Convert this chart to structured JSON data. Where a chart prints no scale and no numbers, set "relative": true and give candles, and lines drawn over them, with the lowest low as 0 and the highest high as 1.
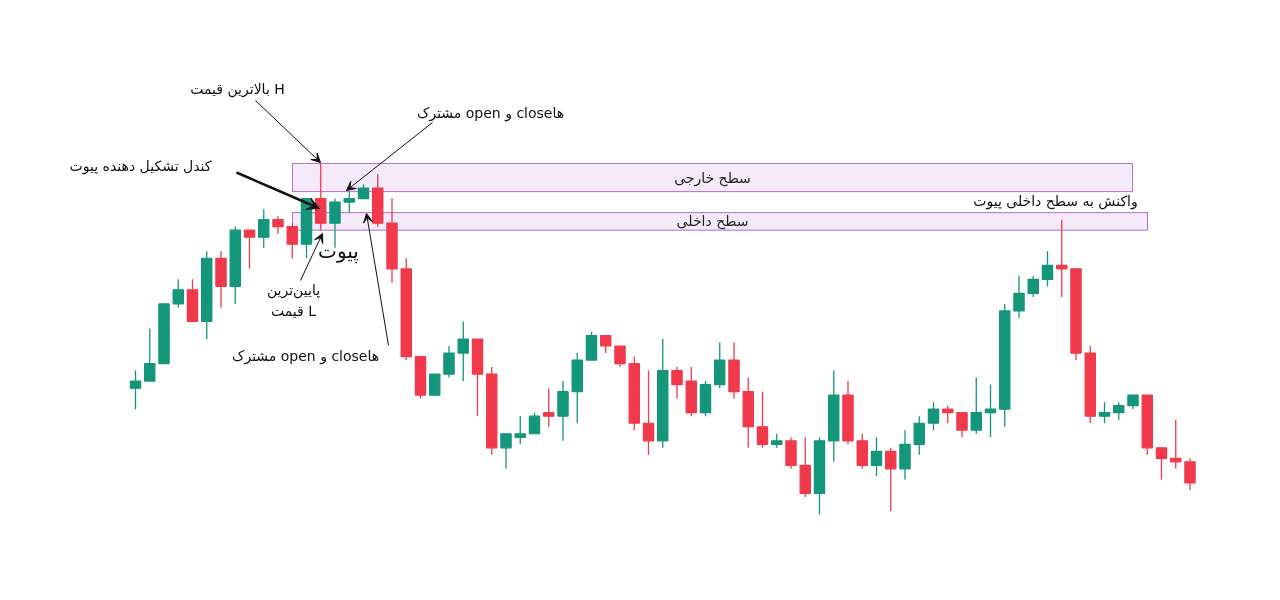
{
  "chart_data": {
    "type": "candlestick",
    "relative": true,
    "categories": [
      null,
      null,
      null,
      null,
      null,
      null,
      null,
      null,
      null,
      null,
      null,
      null,
      null,
      null,
      null,
      null,
      null,
      null,
      null,
      null,
      null,
      null,
      null,
      null,
      null,
      null,
      null,
      null,
      null,
      null,
      null,
      null,
      null,
      null,
      null,
      null,
      null,
      null,
      null,
      null,
      null,
      null,
      null,
      null,
      null,
      null,
      null,
      null,
      null,
      null,
      null,
      null,
      null,
      null,
      null,
      null,
      null,
      null,
      null,
      null,
      null,
      null,
      null,
      null,
      null,
      null,
      null,
      null,
      null,
      null,
      null,
      null,
      null,
      null,
      null
    ],
    "ohlc": [
      [
        0.36,
        0.41,
        0.3,
        0.38
      ],
      [
        0.38,
        0.53,
        0.38,
        0.43
      ],
      [
        0.43,
        0.6,
        0.43,
        0.6
      ],
      [
        0.6,
        0.67,
        0.59,
        0.64
      ],
      [
        0.64,
        0.67,
        0.55,
        0.55
      ],
      [
        0.55,
        0.75,
        0.5,
        0.73
      ],
      [
        0.73,
        0.75,
        0.59,
        0.65
      ],
      [
        0.65,
        0.82,
        0.6,
        0.81
      ],
      [
        0.81,
        0.81,
        0.7,
        0.79
      ],
      [
        0.79,
        0.87,
        0.76,
        0.84
      ],
      [
        0.84,
        0.85,
        0.8,
        0.82
      ],
      [
        0.82,
        0.83,
        0.73,
        0.77
      ],
      [
        0.77,
        0.9,
        0.73,
        0.9
      ],
      [
        0.9,
        1.0,
        0.81,
        0.83
      ],
      [
        0.83,
        0.9,
        0.76,
        0.89
      ],
      [
        0.89,
        0.92,
        0.86,
        0.9
      ],
      [
        0.9,
        0.94,
        0.9,
        0.93
      ],
      [
        0.93,
        0.97,
        0.82,
        0.83
      ],
      [
        0.83,
        0.9,
        0.66,
        0.7
      ],
      [
        0.7,
        0.73,
        0.44,
        0.45
      ],
      [
        0.45,
        0.45,
        0.33,
        0.34
      ],
      [
        0.34,
        0.4,
        0.34,
        0.4
      ],
      [
        0.4,
        0.48,
        0.39,
        0.46
      ],
      [
        0.46,
        0.55,
        0.38,
        0.5
      ],
      [
        0.5,
        0.5,
        0.28,
        0.4
      ],
      [
        0.4,
        0.42,
        0.17,
        0.19
      ],
      [
        0.19,
        0.23,
        0.13,
        0.23
      ],
      [
        0.22,
        0.28,
        0.2,
        0.23
      ],
      [
        0.23,
        0.29,
        0.23,
        0.28
      ],
      [
        0.29,
        0.36,
        0.25,
        0.28
      ],
      [
        0.28,
        0.38,
        0.21,
        0.35
      ],
      [
        0.35,
        0.46,
        0.26,
        0.44
      ],
      [
        0.44,
        0.52,
        0.44,
        0.51
      ],
      [
        0.51,
        0.51,
        0.46,
        0.48
      ],
      [
        0.48,
        0.48,
        0.42,
        0.43
      ],
      [
        0.43,
        0.45,
        0.24,
        0.26
      ],
      [
        0.26,
        0.41,
        0.17,
        0.21
      ],
      [
        0.21,
        0.5,
        0.19,
        0.41
      ],
      [
        0.41,
        0.42,
        0.33,
        0.37
      ],
      [
        0.38,
        0.42,
        0.28,
        0.29
      ],
      [
        0.29,
        0.38,
        0.28,
        0.37
      ],
      [
        0.37,
        0.49,
        0.36,
        0.44
      ],
      [
        0.44,
        0.49,
        0.33,
        0.35
      ],
      [
        0.35,
        0.39,
        0.19,
        0.25
      ],
      [
        0.25,
        0.35,
        0.19,
        0.2
      ],
      [
        0.2,
        0.23,
        0.19,
        0.21
      ],
      [
        0.21,
        0.22,
        0.13,
        0.14
      ],
      [
        0.14,
        0.22,
        0.05,
        0.06
      ],
      [
        0.06,
        0.22,
        0.0,
        0.21
      ],
      [
        0.21,
        0.41,
        0.15,
        0.34
      ],
      [
        0.34,
        0.38,
        0.2,
        0.21
      ],
      [
        0.21,
        0.23,
        0.13,
        0.14
      ],
      [
        0.14,
        0.22,
        0.11,
        0.18
      ],
      [
        0.18,
        0.19,
        0.01,
        0.13
      ],
      [
        0.13,
        0.24,
        0.1,
        0.2
      ],
      [
        0.2,
        0.28,
        0.17,
        0.26
      ],
      [
        0.26,
        0.32,
        0.24,
        0.3
      ],
      [
        0.3,
        0.31,
        0.26,
        0.29
      ],
      [
        0.29,
        0.29,
        0.22,
        0.24
      ],
      [
        0.24,
        0.39,
        0.23,
        0.29
      ],
      [
        0.29,
        0.37,
        0.22,
        0.3
      ],
      [
        0.3,
        0.6,
        0.25,
        0.58
      ],
      [
        0.58,
        0.68,
        0.56,
        0.63
      ],
      [
        0.63,
        0.68,
        0.62,
        0.67
      ],
      [
        0.67,
        0.75,
        0.65,
        0.71
      ],
      [
        0.71,
        0.84,
        0.62,
        0.7
      ],
      [
        0.7,
        0.7,
        0.44,
        0.46
      ],
      [
        0.46,
        0.48,
        0.26,
        0.28
      ],
      [
        0.28,
        0.32,
        0.26,
        0.29
      ],
      [
        0.29,
        0.32,
        0.27,
        0.31
      ],
      [
        0.31,
        0.34,
        0.3,
        0.34
      ],
      [
        0.34,
        0.34,
        0.17,
        0.19
      ],
      [
        0.19,
        0.19,
        0.1,
        0.16
      ],
      [
        0.16,
        0.27,
        0.13,
        0.15
      ],
      [
        0.15,
        0.16,
        0.07,
        0.09
      ]
    ],
    "bands": [
      {
        "axis": "y",
        "from": 0.92,
        "to": 1.0,
        "label": "سطح خارجی",
        "color": "#b36fd8"
      },
      {
        "axis": "y",
        "from": 0.81,
        "to": 0.86,
        "label": "سطح داخلی",
        "color": "#b36fd8"
      }
    ],
    "annotations": [
      "بالاترین قیمت H",
      "مشترک open و closeها",
      "کندل تشکیل دهنده پیوت",
      "پیوت",
      "پایین‌ترین\nقیمت L",
      "مشترک open و closeها",
      "واکنش به سطح داخلی پیوت"
    ]
  }
}
